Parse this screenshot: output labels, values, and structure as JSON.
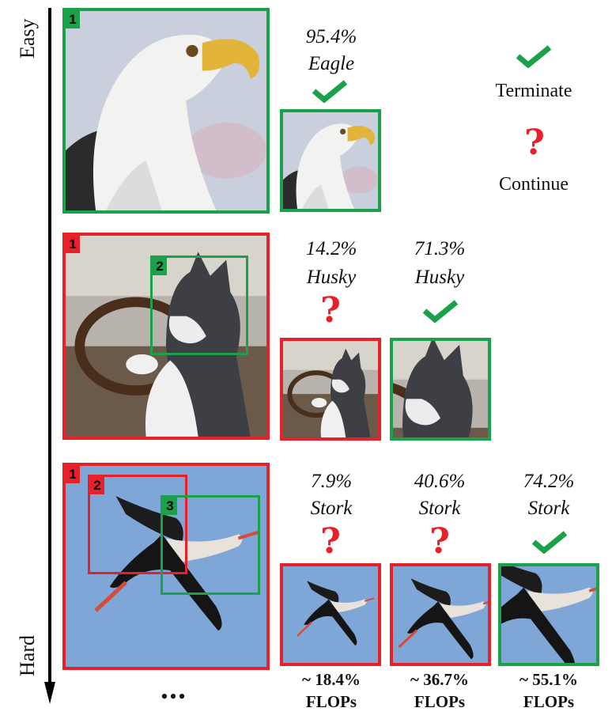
{
  "axis": {
    "top_label": "Easy",
    "bottom_label": "Hard"
  },
  "legend": {
    "terminate_label": "Terminate",
    "continue_label": "Continue",
    "check_icon": "check-icon",
    "question_icon": "question-icon"
  },
  "colors": {
    "green": "#1aa14a",
    "red": "#e8202a",
    "sky": "#7ea7d8"
  },
  "rows": [
    {
      "name": "eagle",
      "crops": [
        "1"
      ],
      "steps": [
        {
          "confidence": "95.4%",
          "label": "Eagle",
          "decision": "terminate"
        }
      ]
    },
    {
      "name": "husky",
      "crops": [
        "1",
        "2"
      ],
      "steps": [
        {
          "confidence": "14.2%",
          "label": "Husky",
          "decision": "continue"
        },
        {
          "confidence": "71.3%",
          "label": "Husky",
          "decision": "terminate"
        }
      ]
    },
    {
      "name": "stork",
      "crops": [
        "1",
        "2",
        "3"
      ],
      "steps": [
        {
          "confidence": "7.9%",
          "label": "Stork",
          "decision": "continue",
          "flops": "~ 18.4%",
          "flops_unit": "FLOPs"
        },
        {
          "confidence": "40.6%",
          "label": "Stork",
          "decision": "continue",
          "flops": "~ 36.7%",
          "flops_unit": "FLOPs"
        },
        {
          "confidence": "74.2%",
          "label": "Stork",
          "decision": "terminate",
          "flops": "~ 55.1%",
          "flops_unit": "FLOPs"
        }
      ]
    }
  ],
  "ellipsis": "•••"
}
